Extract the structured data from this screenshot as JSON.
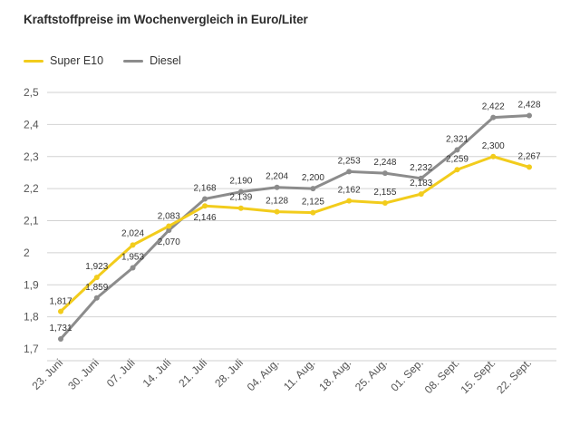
{
  "chart_data": {
    "type": "line",
    "title": "Kraftstoffpreise im Wochenvergleich in Euro/Liter",
    "xlabel": "",
    "ylabel": "",
    "categories": [
      "23. Juni",
      "30. Juni",
      "07. Juli",
      "14. Juli",
      "21. Juli",
      "28. Juli",
      "04. Aug.",
      "11. Aug.",
      "18. Aug.",
      "25. Aug.",
      "01. Sep.",
      "08. Sept.",
      "15. Sept.",
      "22. Sept."
    ],
    "series": [
      {
        "name": "Super E10",
        "color": "#f2cc1c",
        "values": [
          1.817,
          1.923,
          2.024,
          2.083,
          2.146,
          2.139,
          2.128,
          2.125,
          2.162,
          2.155,
          2.183,
          2.259,
          2.3,
          2.267
        ],
        "labels": [
          "1,817",
          "1,923",
          "2,024",
          "2,083",
          "2,146",
          "2,139",
          "2,128",
          "2,125",
          "2,162",
          "2,155",
          "2,183",
          "2,259",
          "2,300",
          "2,267"
        ]
      },
      {
        "name": "Diesel",
        "color": "#8c8c8c",
        "values": [
          1.731,
          1.859,
          1.953,
          2.07,
          2.168,
          2.19,
          2.204,
          2.2,
          2.253,
          2.248,
          2.232,
          2.321,
          2.422,
          2.428
        ],
        "labels": [
          "1,731",
          "1,859",
          "1,953",
          "2,070",
          "2,168",
          "2,190",
          "2,204",
          "2,200",
          "2,253",
          "2,248",
          "2,232",
          "2,321",
          "2,422",
          "2,428"
        ]
      }
    ],
    "yticks": [
      1.7,
      1.8,
      1.9,
      2.0,
      2.1,
      2.2,
      2.3,
      2.4,
      2.5
    ],
    "ytick_labels": [
      "1,7",
      "1,8",
      "1,9",
      "2",
      "2,1",
      "2,2",
      "2,3",
      "2,4",
      "2,5"
    ],
    "ylim": [
      1.7,
      2.5
    ],
    "grid": true,
    "legend": "top-left"
  }
}
